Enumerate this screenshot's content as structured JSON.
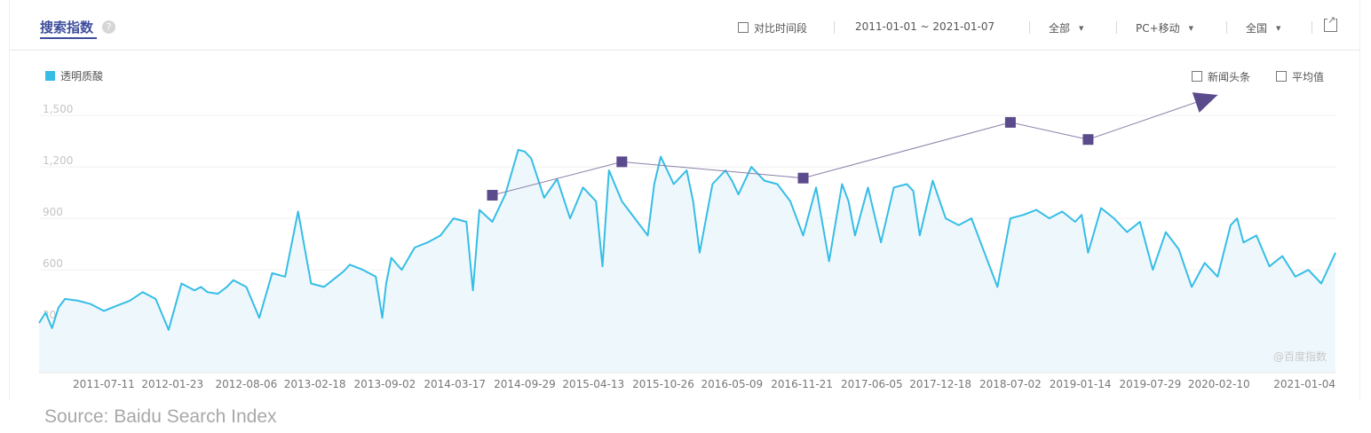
{
  "header": {
    "title": "搜索指数",
    "help_icon": "question-icon",
    "compare_label": "对比时间段",
    "date_range": "2011-01-01 ~ 2021-01-07",
    "scope": "全部",
    "device": "PC+移动",
    "region": "全国",
    "external_icon": "external-link-icon"
  },
  "options": {
    "news_label": "新闻头条",
    "average_label": "平均值"
  },
  "watermark": "@百度指数",
  "source": "Source: Baidu Search Index",
  "colors": {
    "series": "#36bde6",
    "fill": "#eef8fc",
    "overlay": "#5b4a8c",
    "accent": "#3d4d9c"
  },
  "chart_data": {
    "type": "line",
    "title": "",
    "xlabel": "",
    "ylabel": "",
    "ylim": [
      0,
      1620
    ],
    "yticks": [
      "300",
      "600",
      "900",
      "1,200",
      "1,500"
    ],
    "ytick_values": [
      300,
      600,
      900,
      1200,
      1500
    ],
    "xticks": [
      "2011-07-11",
      "2012-01-23",
      "2012-08-06",
      "2013-02-18",
      "2013-09-02",
      "2014-03-17",
      "2014-09-29",
      "2015-04-13",
      "2015-10-26",
      "2016-05-09",
      "2016-11-21",
      "2017-06-05",
      "2017-12-18",
      "2018-07-02",
      "2019-01-14",
      "2019-07-29",
      "2020-02-10",
      "2021-01-04"
    ],
    "xtick_values": [
      0.5,
      1.03,
      1.6,
      2.13,
      2.67,
      3.21,
      3.75,
      4.28,
      4.82,
      5.35,
      5.89,
      6.43,
      6.96,
      7.5,
      8.04,
      8.58,
      9.11,
      10.01
    ],
    "x_range": [
      0,
      10.01
    ],
    "legend": "top-left",
    "grid": true,
    "series": [
      {
        "name": "透明质酸",
        "x": [
          0,
          0.05,
          0.1,
          0.15,
          0.2,
          0.3,
          0.4,
          0.5,
          0.6,
          0.7,
          0.8,
          0.9,
          1.0,
          1.1,
          1.2,
          1.25,
          1.3,
          1.38,
          1.45,
          1.5,
          1.6,
          1.7,
          1.8,
          1.9,
          2.0,
          2.1,
          2.2,
          2.3,
          2.35,
          2.4,
          2.5,
          2.6,
          2.65,
          2.68,
          2.72,
          2.8,
          2.9,
          3.0,
          3.1,
          3.2,
          3.3,
          3.35,
          3.4,
          3.5,
          3.6,
          3.7,
          3.75,
          3.8,
          3.9,
          4.0,
          4.1,
          4.2,
          4.3,
          4.35,
          4.4,
          4.5,
          4.6,
          4.7,
          4.75,
          4.8,
          4.9,
          5.0,
          5.05,
          5.1,
          5.2,
          5.3,
          5.35,
          5.4,
          5.5,
          5.6,
          5.7,
          5.8,
          5.9,
          6.0,
          6.1,
          6.2,
          6.25,
          6.3,
          6.4,
          6.5,
          6.6,
          6.7,
          6.75,
          6.8,
          6.9,
          7.0,
          7.1,
          7.2,
          7.3,
          7.4,
          7.5,
          7.6,
          7.7,
          7.8,
          7.9,
          8.0,
          8.05,
          8.1,
          8.2,
          8.3,
          8.4,
          8.5,
          8.6,
          8.7,
          8.8,
          8.9,
          9.0,
          9.1,
          9.2,
          9.25,
          9.3,
          9.4,
          9.5,
          9.6,
          9.7,
          9.8,
          9.9,
          10.01
        ],
        "y": [
          290,
          350,
          260,
          380,
          430,
          420,
          400,
          360,
          390,
          420,
          470,
          430,
          250,
          520,
          480,
          500,
          470,
          460,
          500,
          540,
          500,
          320,
          580,
          560,
          940,
          520,
          500,
          560,
          590,
          630,
          600,
          560,
          320,
          520,
          670,
          600,
          730,
          760,
          800,
          900,
          880,
          480,
          950,
          880,
          1040,
          1300,
          1290,
          1250,
          1020,
          1130,
          900,
          1080,
          1000,
          620,
          1180,
          1000,
          900,
          800,
          1100,
          1260,
          1100,
          1180,
          1000,
          700,
          1100,
          1180,
          1120,
          1040,
          1200,
          1120,
          1100,
          1000,
          800,
          1080,
          650,
          1100,
          1000,
          800,
          1080,
          760,
          1080,
          1100,
          1060,
          800,
          1120,
          900,
          860,
          900,
          700,
          500,
          900,
          920,
          950,
          900,
          940,
          880,
          920,
          700,
          960,
          900,
          820,
          880,
          600,
          820,
          720,
          500,
          640,
          560,
          860,
          900,
          760,
          800,
          620,
          680,
          560,
          600,
          520,
          700
        ]
      }
    ],
    "overlay_series": {
      "x": [
        3.5,
        4.5,
        5.9,
        7.5,
        8.1
      ],
      "y": [
        1035,
        1230,
        1135,
        1460,
        1360
      ],
      "arrow_end": {
        "x": 9.1,
        "y": 1620
      }
    }
  }
}
